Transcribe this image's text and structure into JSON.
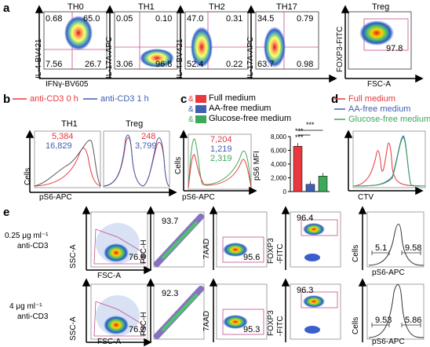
{
  "panel_letters": {
    "a": "a",
    "b": "b",
    "c": "c",
    "d": "d",
    "e": "e"
  },
  "panel_a": {
    "plots": [
      {
        "title": "TH0",
        "ylabel": "IL-4-BV421",
        "q": [
          "0.68",
          "65.0",
          "7.56",
          "26.7"
        ]
      },
      {
        "title": "TH1",
        "ylabel": "IL-17A-APC",
        "q": [
          "0.05",
          "0.10",
          "3.06",
          "96.8"
        ]
      },
      {
        "title": "TH2",
        "ylabel": "IL-4-BV421",
        "q": [
          "47.0",
          "0.31",
          "52.4",
          "0.22"
        ]
      },
      {
        "title": "TH17",
        "ylabel": "IL-17A-APC",
        "q": [
          "34.5",
          "0.79",
          "63.7",
          "0.98"
        ]
      }
    ],
    "xlabel": "IFNγ-BV605",
    "treg": {
      "title": "Treg",
      "ylabel": "FOXP3-FITC",
      "xlabel": "FSC-A",
      "value": "97.8"
    }
  },
  "panel_b": {
    "legend": [
      {
        "label": "anti-CD3 0 h",
        "color": "#e8383d"
      },
      {
        "label": "anti-CD3 1 h",
        "color": "#3f5fb0"
      }
    ],
    "plots": [
      {
        "title": "TH1",
        "red": "5,384",
        "blue": "16,829"
      },
      {
        "title": "Treg",
        "red": "248",
        "blue": "3,799"
      }
    ],
    "ylabel": "Cells",
    "xlabel": "pS6-APC"
  },
  "panel_c": {
    "legend": [
      {
        "label": "Full medium",
        "color": "#e8383d"
      },
      {
        "label": "AA-free medium",
        "color": "#3f5fb0"
      },
      {
        "label": "Glucose-free medium",
        "color": "#3ea85a"
      }
    ],
    "hist_values": [
      "7,204",
      "1,219",
      "2,319"
    ],
    "hist_ylabel": "Cells",
    "hist_xlabel": "pS6-APC",
    "bar_ylabel": "pS6 MFI",
    "significance": [
      "***",
      "***",
      "***"
    ],
    "chart_data": {
      "type": "bar",
      "categories": [
        "Full medium",
        "AA-free medium",
        "Glucose-free medium"
      ],
      "values": [
        6600,
        1050,
        2250
      ],
      "ylabel": "pS6 MFI",
      "ylim": [
        0,
        8000
      ],
      "yticks": [
        "0",
        "2,000",
        "4,000",
        "6,000",
        "8,000"
      ],
      "colors": [
        "#e8383d",
        "#3f5fb0",
        "#3ea85a"
      ]
    }
  },
  "panel_d": {
    "legend": [
      {
        "label": "Full medium",
        "color": "#e8383d"
      },
      {
        "label": "AA-free medium",
        "color": "#3f5fb0"
      },
      {
        "label": "Glucose-free medium",
        "color": "#3ea85a"
      }
    ],
    "xlabel": "CTV"
  },
  "panel_e": {
    "rows": [
      {
        "condition": "0.25 μg ml⁻¹",
        "condition2": "anti-CD3",
        "fsc": "76.9",
        "fsch": "93.7",
        "aad": "95.6",
        "foxp3": "96.4",
        "hist_left": "5.1",
        "hist_right": "9.58"
      },
      {
        "condition": "4 μg ml⁻¹",
        "condition2": "anti-CD3",
        "fsc": "76.2",
        "fsch": "92.3",
        "aad": "95.3",
        "foxp3": "96.3",
        "hist_left": "9.53",
        "hist_right": "5.86"
      }
    ],
    "labels": {
      "ssc": "SSC-A",
      "fsca": "FSC-A",
      "fsch": "FSC-H",
      "aad": "7AAD",
      "foxp3": "FOXP3",
      "fitc": "-FITC",
      "cells": "Cells",
      "ps6": "pS6-APC"
    }
  }
}
